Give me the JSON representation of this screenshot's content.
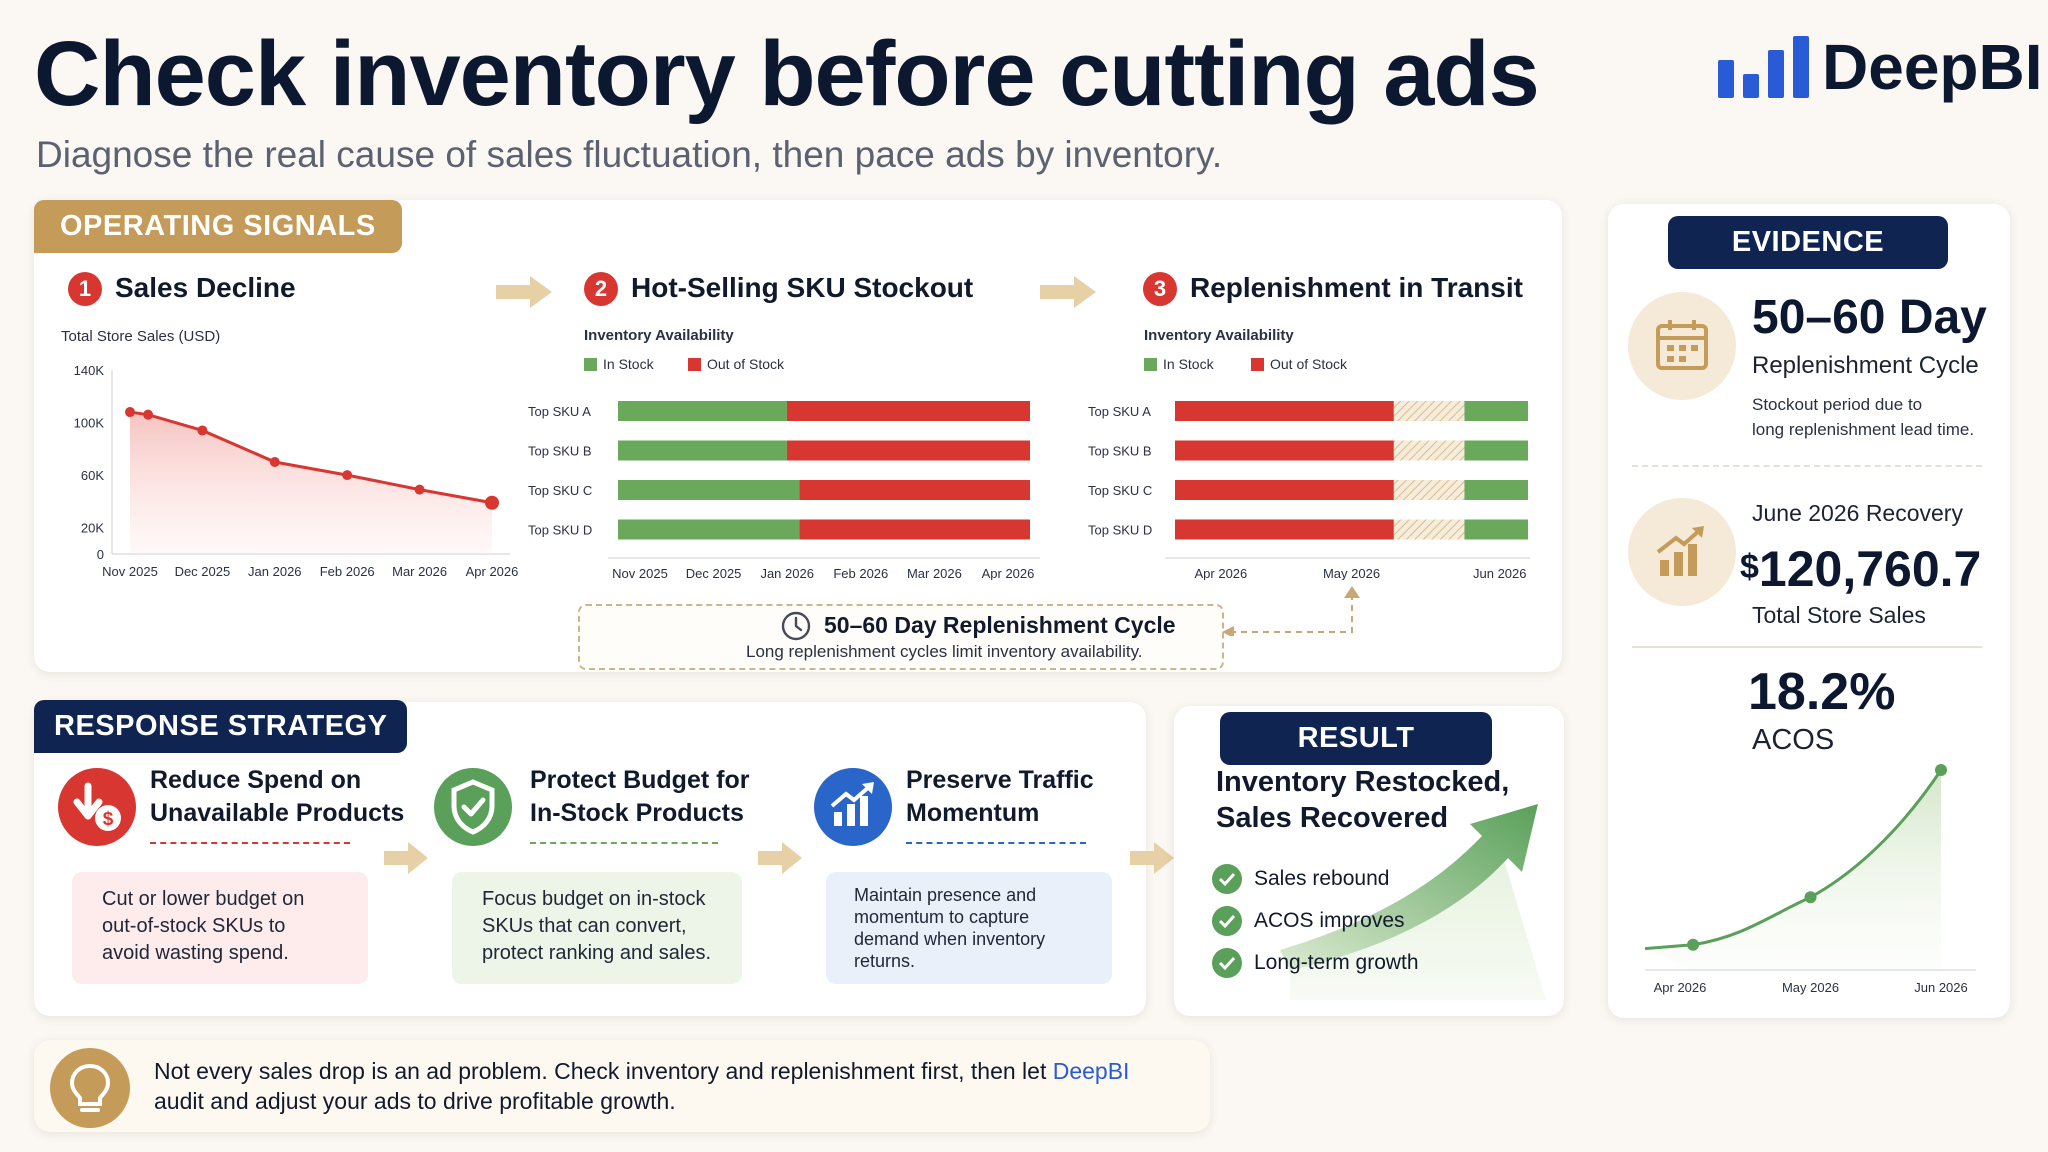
{
  "header": {
    "title": "Check inventory before cutting ads",
    "subtitle": "Diagnose the real cause of sales fluctuation, then pace ads by inventory.",
    "logo_text": "DeepBI"
  },
  "signals": {
    "tag": "OPERATING SIGNALS",
    "step1": {
      "num": "1",
      "title": "Sales Decline",
      "chart_label": "Total Store Sales (USD)"
    },
    "step2": {
      "num": "2",
      "title": "Hot-Selling SKU Stockout",
      "chart_label": "Inventory Availability",
      "legend_in": "In Stock",
      "legend_out": "Out of Stock"
    },
    "step3": {
      "num": "3",
      "title": "Replenishment in Transit",
      "chart_label": "Inventory Availability",
      "legend_in": "In Stock",
      "legend_out": "Out of Stock"
    },
    "callout": {
      "title": "50–60 Day Replenishment Cycle",
      "text": "Long replenishment cycles limit inventory availability."
    }
  },
  "evidence": {
    "tag": "EVIDENCE",
    "cycle_big": "50–60 Day",
    "cycle_med": "Replenishment Cycle",
    "cycle_note_1": "Stockout period due to",
    "cycle_note_2": "long replenishment lead time.",
    "recovery_label": "June 2026 Recovery",
    "recovery_currency": "$",
    "recovery_value": "120,760.7",
    "recovery_caption": "Total Store Sales",
    "acos_value": "18.2%",
    "acos_label": "ACOS"
  },
  "strategy": {
    "tag": "RESPONSE STRATEGY",
    "items": [
      {
        "title_1": "Reduce Spend on",
        "title_2": "Unavailable Products",
        "body": [
          "Cut or lower budget on",
          "out-of-stock SKUs to",
          "avoid wasting spend."
        ]
      },
      {
        "title_1": "Protect Budget for",
        "title_2": "In-Stock Products",
        "body": [
          "Focus budget on in-stock",
          "SKUs that can convert,",
          "protect ranking and sales."
        ]
      },
      {
        "title_1": "Preserve Traffic",
        "title_2": "Momentum",
        "body": [
          "Maintain presence and",
          "momentum to capture",
          "demand when inventory",
          "returns."
        ]
      }
    ]
  },
  "result": {
    "tag": "RESULT",
    "title_1": "Inventory Restocked,",
    "title_2": "Sales Recovered",
    "checks": [
      "Sales rebound",
      "ACOS improves",
      "Long-term growth"
    ]
  },
  "footer": {
    "text_1": "Not every sales drop is an ad problem. Check inventory and replenishment first, then let ",
    "brand": "DeepBI",
    "text_2": "audit and adjust your ads to drive profitable growth."
  },
  "colors": {
    "navy": "#0f2450",
    "gold": "#c49b58",
    "red": "#d83630",
    "green": "#6aa85b",
    "blue": "#2a66c9"
  },
  "chart_data": [
    {
      "type": "area",
      "title": "Total Store Sales (USD)",
      "categories": [
        "Nov 2025",
        "Dec 2025",
        "Jan 2026",
        "Feb 2026",
        "Mar 2026",
        "Apr 2026"
      ],
      "x": [
        0,
        0.25,
        1,
        2,
        3,
        4,
        5
      ],
      "values": [
        108000,
        106000,
        94000,
        70000,
        60000,
        49000,
        39000
      ],
      "y_ticks": [
        "0",
        "20K",
        "60K",
        "100K",
        "140K"
      ],
      "ylim": [
        0,
        140000
      ]
    },
    {
      "type": "bar",
      "title": "Inventory Availability",
      "categories": [
        "Top SKU A",
        "Top SKU B",
        "Top SKU C",
        "Top SKU D"
      ],
      "x_ticks": [
        "Nov 2025",
        "Dec 2025",
        "Jan 2026",
        "Feb 2026",
        "Mar 2026",
        "Apr 2026"
      ],
      "series": [
        {
          "name": "In Stock",
          "values": [
            0.41,
            0.41,
            0.44,
            0.44
          ]
        },
        {
          "name": "Out of Stock",
          "values": [
            0.59,
            0.59,
            0.56,
            0.56
          ]
        }
      ]
    },
    {
      "type": "bar",
      "title": "Inventory Availability",
      "categories": [
        "Top SKU A",
        "Top SKU B",
        "Top SKU C",
        "Top SKU D"
      ],
      "x_ticks": [
        "Apr 2026",
        "May 2026",
        "Jun 2026"
      ],
      "series": [
        {
          "name": "Out of Stock",
          "values": [
            0.62,
            0.62,
            0.62,
            0.62
          ]
        },
        {
          "name": "In Transit",
          "values": [
            0.2,
            0.2,
            0.2,
            0.2
          ]
        },
        {
          "name": "In Stock",
          "values": [
            0.18,
            0.18,
            0.18,
            0.18
          ]
        }
      ]
    },
    {
      "type": "line",
      "categories": [
        "Apr 2026",
        "May 2026",
        "Jun 2026"
      ],
      "x": [
        0.1,
        1.0,
        2.0
      ],
      "values": [
        0.08,
        0.33,
        1.0
      ]
    }
  ]
}
